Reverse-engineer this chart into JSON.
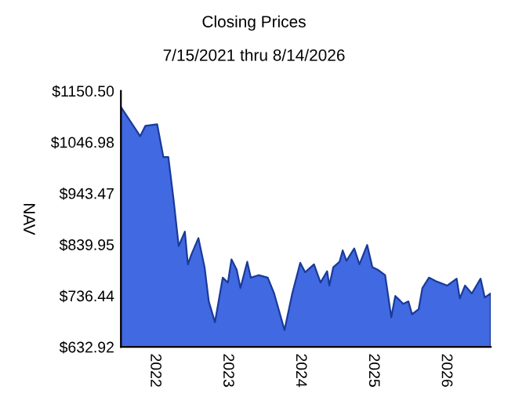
{
  "chart_data": {
    "type": "area",
    "title": "Closing Prices",
    "subtitle": "7/15/2021 thru 8/14/2026",
    "ylabel": "NAV",
    "x": [
      "2021-07-15",
      "2021-10-20",
      "2021-11-15",
      "2022-01-13",
      "2022-02-13",
      "2022-03-10",
      "2022-04-05",
      "2022-05-01",
      "2022-06-01",
      "2022-06-16",
      "2022-07-05",
      "2022-08-08",
      "2022-09-08",
      "2022-09-29",
      "2022-10-30",
      "2022-12-08",
      "2023-01-03",
      "2023-01-21",
      "2023-02-16",
      "2023-03-07",
      "2023-04-10",
      "2023-04-28",
      "2023-06-06",
      "2023-07-22",
      "2023-08-23",
      "2023-10-14",
      "2023-11-22",
      "2024-01-01",
      "2024-01-26",
      "2024-03-10",
      "2024-04-12",
      "2024-05-15",
      "2024-05-26",
      "2024-06-15",
      "2024-07-16",
      "2024-08-01",
      "2024-08-20",
      "2024-09-28",
      "2024-10-24",
      "2024-12-02",
      "2024-12-28",
      "2025-01-24",
      "2025-03-02",
      "2025-04-02",
      "2025-04-22",
      "2025-06-01",
      "2025-06-27",
      "2025-07-15",
      "2025-08-17",
      "2025-09-05",
      "2025-10-08",
      "2025-11-17",
      "2026-01-08",
      "2026-02-24",
      "2026-03-12",
      "2026-04-07",
      "2026-05-11",
      "2026-06-24",
      "2026-07-15",
      "2026-08-14"
    ],
    "series": [
      {
        "color": "#4169e1",
        "values": [
          1118,
          1059,
          1080,
          1083,
          1017,
          1017,
          932,
          837,
          866,
          800,
          821,
          853,
          794,
          725,
          683,
          773,
          763,
          810,
          789,
          752,
          805,
          773,
          778,
          773,
          741,
          667,
          741,
          803,
          784,
          800,
          763,
          786,
          757,
          794,
          805,
          828,
          807,
          832,
          800,
          839,
          794,
          789,
          778,
          693,
          736,
          720,
          725,
          699,
          709,
          752,
          773,
          765,
          757,
          771,
          731,
          757,
          741,
          771,
          733,
          741
        ]
      }
    ],
    "xlim": [
      "2021-07-15",
      "2026-08-14"
    ],
    "xticks": [
      {
        "value": "2022-01-01",
        "label": "2022"
      },
      {
        "value": "2023-01-01",
        "label": "2023"
      },
      {
        "value": "2024-01-01",
        "label": "2024"
      },
      {
        "value": "2025-01-01",
        "label": "2025"
      },
      {
        "value": "2026-01-01",
        "label": "2026"
      }
    ],
    "ylim": [
      632.92,
      1150.5
    ],
    "yticks": [
      {
        "value": 632.92,
        "label": "$632.92"
      },
      {
        "value": 736.44,
        "label": "$736.44"
      },
      {
        "value": 839.95,
        "label": "$839.95"
      },
      {
        "value": 943.47,
        "label": "$943.47"
      },
      {
        "value": 1046.98,
        "label": "$1046.98"
      },
      {
        "value": 1150.5,
        "label": "$1150.50"
      }
    ],
    "grid": false,
    "legend": false
  }
}
